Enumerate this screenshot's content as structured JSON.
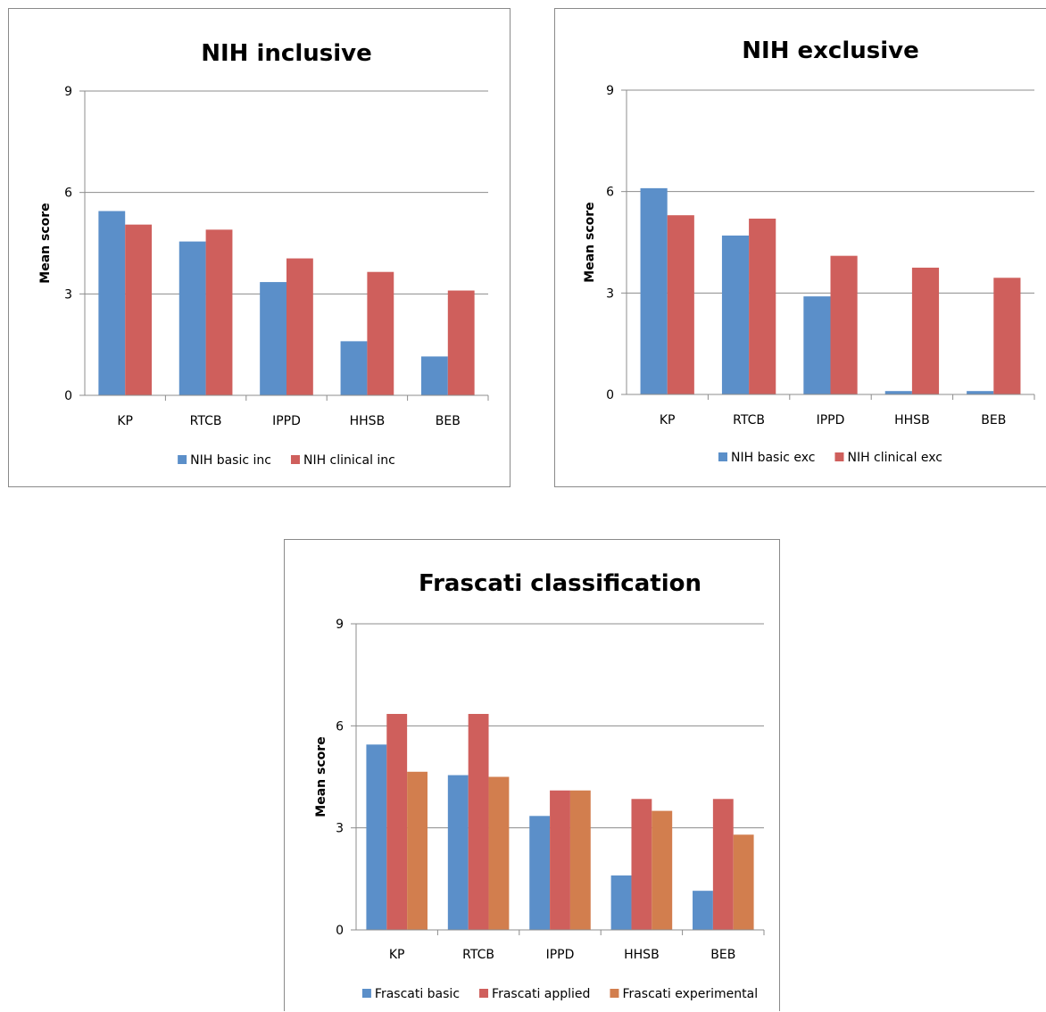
{
  "chart_data": [
    {
      "type": "bar",
      "title": "NIH inclusive",
      "xlabel": "",
      "ylabel": "Mean score",
      "ylim": [
        0,
        9
      ],
      "yticks": [
        "0",
        "3",
        "6",
        "9"
      ],
      "grid": true,
      "legend": "bottom",
      "categories": [
        "KP",
        "RTCB",
        "IPPD",
        "HHSB",
        "BEB"
      ],
      "series": [
        {
          "name": "NIH basic inc",
          "color": "#5b8fc9",
          "values": [
            5.45,
            4.55,
            3.35,
            1.6,
            1.15
          ]
        },
        {
          "name": "NIH clinical inc",
          "color": "#cf5f5c",
          "values": [
            5.05,
            4.9,
            4.05,
            3.65,
            3.1
          ]
        }
      ]
    },
    {
      "type": "bar",
      "title": "NIH exclusive",
      "xlabel": "",
      "ylabel": "Mean score",
      "ylim": [
        0,
        9
      ],
      "yticks": [
        "0",
        "3",
        "6",
        "9"
      ],
      "grid": true,
      "legend": "bottom",
      "categories": [
        "KP",
        "RTCB",
        "IPPD",
        "HHSB",
        "BEB"
      ],
      "series": [
        {
          "name": "NIH basic exc",
          "color": "#5b8fc9",
          "values": [
            6.1,
            4.7,
            2.9,
            0.1,
            0.1
          ]
        },
        {
          "name": "NIH clinical exc",
          "color": "#cf5f5c",
          "values": [
            5.3,
            5.2,
            4.1,
            3.75,
            3.45
          ]
        }
      ]
    },
    {
      "type": "bar",
      "title": "Frascati classification",
      "xlabel": "",
      "ylabel": "Mean score",
      "ylim": [
        0,
        9
      ],
      "yticks": [
        "0",
        "3",
        "6",
        "9"
      ],
      "grid": true,
      "legend": "bottom",
      "categories": [
        "KP",
        "RTCB",
        "IPPD",
        "HHSB",
        "BEB"
      ],
      "series": [
        {
          "name": "Frascati basic",
          "color": "#5b8fc9",
          "values": [
            5.45,
            4.55,
            3.35,
            1.6,
            1.15
          ]
        },
        {
          "name": "Frascati applied",
          "color": "#cf5f5c",
          "values": [
            6.35,
            6.35,
            4.1,
            3.85,
            3.85
          ]
        },
        {
          "name": "Frascati experimental",
          "color": "#d27e4e",
          "values": [
            4.65,
            4.5,
            4.1,
            3.5,
            2.8
          ]
        }
      ]
    }
  ]
}
